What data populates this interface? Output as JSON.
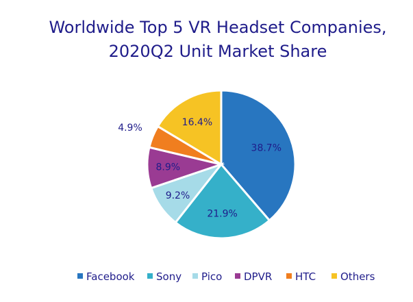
{
  "chart_data": {
    "type": "pie",
    "title_lines": [
      "Worldwide Top 5 VR Headset Companies,",
      "2020Q2 Unit Market Share"
    ],
    "categories": [
      "Facebook",
      "Sony",
      "Pico",
      "DPVR",
      "HTC",
      "Others"
    ],
    "values": [
      38.7,
      21.9,
      9.2,
      8.9,
      4.9,
      16.4
    ],
    "data_labels": [
      "38.7%",
      "21.9%",
      "9.2%",
      "8.9%",
      "4.9%",
      "16.4%"
    ],
    "colors": [
      "#2876c0",
      "#35b0c9",
      "#a6dbe8",
      "#9a3b93",
      "#f07e1f",
      "#f6c324"
    ],
    "legend": {
      "position": "bottom",
      "entries": [
        "Facebook",
        "Sony",
        "Pico",
        "DPVR",
        "HTC",
        "Others"
      ]
    },
    "start_angle": "12 o'clock",
    "direction": "clockwise"
  }
}
